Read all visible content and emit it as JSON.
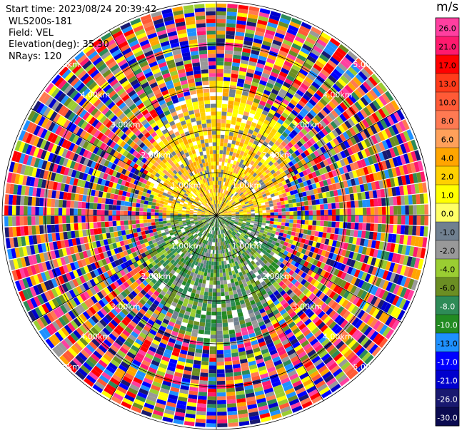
{
  "header": {
    "start_time": "Start time: 2023/08/24 20:39:42",
    "instrument": "WLS200s-181",
    "field": "Field: VEL",
    "elevation": "Elevation(deg): 35.30",
    "nrays": "NRays: 120"
  },
  "colorbar": {
    "unit": "m/s",
    "ticks": [
      "26.0",
      "21.0",
      "17.0",
      "13.0",
      "10.0",
      "8.0",
      "6.0",
      "4.0",
      "2.0",
      "1.0",
      "0.0",
      "-1.0",
      "-2.0",
      "-4.0",
      "-6.0",
      "-8.0",
      "-10.0",
      "-13.0",
      "-17.0",
      "-21.0",
      "-26.0",
      "-30.0"
    ],
    "colors": [
      "#ff3fa0",
      "#ff1a6e",
      "#ff0000",
      "#ff3b1a",
      "#ff5a36",
      "#ff7a52",
      "#ffa05a",
      "#ffa500",
      "#ffd000",
      "#ffff00",
      "#ffff66",
      "#708090",
      "#999999",
      "#9acd32",
      "#6b8e23",
      "#2e8b57",
      "#228b22",
      "#1e90ff",
      "#0000ff",
      "#0000cd",
      "#191970",
      "#0a0a50"
    ]
  },
  "chart_data": {
    "type": "heatmap",
    "plot_kind": "polar PPI lidar radial velocity",
    "field": "VEL",
    "units": "m/s",
    "nrays": 120,
    "range_rings_km": [
      1.0,
      2.0,
      3.0,
      4.0,
      5.0
    ],
    "range_ring_labels": [
      "1.00km",
      "2.00km",
      "3.00km",
      "4.00km",
      "5.00km"
    ],
    "velocity_scale": [
      -30,
      26
    ],
    "sectors": [
      {
        "azimuth_range_deg": [
          270,
          90
        ],
        "inner_pattern": "positive",
        "value_m_s": 4.0
      },
      {
        "azimuth_range_deg": [
          90,
          270
        ],
        "inner_pattern": "negative",
        "value_m_s": -6.0
      }
    ]
  }
}
